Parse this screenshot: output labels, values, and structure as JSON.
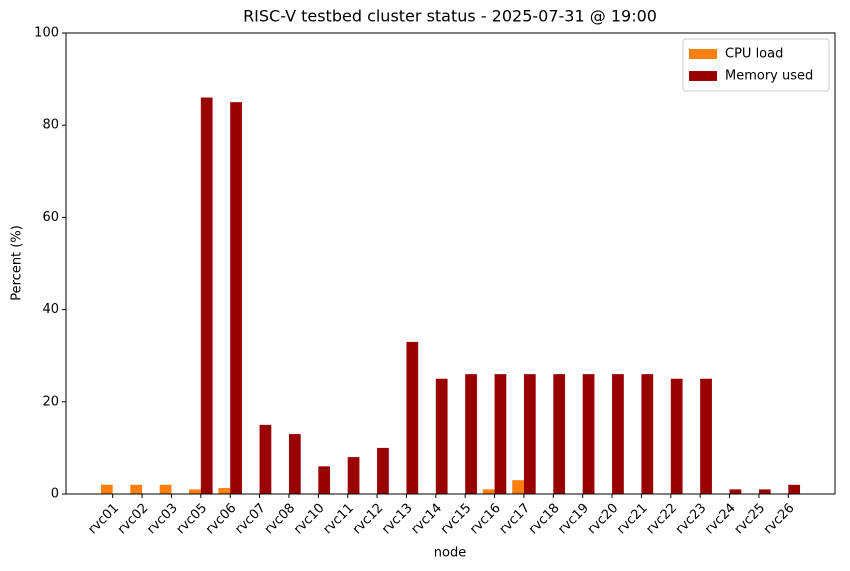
{
  "chart_data": {
    "type": "bar",
    "title": "RISC-V testbed cluster status - 2025-07-31 @ 19:00",
    "x_label": "node",
    "y_label": "Percent (%)",
    "categories": [
      "rvc01",
      "rvc02",
      "rvc03",
      "rvc05",
      "rvc06",
      "rvc07",
      "rvc08",
      "rvc10",
      "rvc11",
      "rvc12",
      "rvc13",
      "rvc14",
      "rvc15",
      "rvc16",
      "rvc17",
      "rvc18",
      "rvc19",
      "rvc20",
      "rvc21",
      "rvc22",
      "rvc23",
      "rvc24",
      "rvc25",
      "rvc26"
    ],
    "series": [
      {
        "name": "CPU load",
        "color": "#ff7f0e",
        "values": [
          2,
          2,
          2,
          1,
          1.3,
          0,
          0,
          0,
          0,
          0,
          0,
          0,
          0,
          1,
          3,
          0,
          0,
          0,
          0,
          0,
          0,
          0,
          0,
          0
        ]
      },
      {
        "name": "Memory used",
        "color": "#990000",
        "values": [
          0,
          0,
          0,
          86,
          85,
          15,
          13,
          6,
          8,
          10,
          33,
          25,
          26,
          26,
          26,
          26,
          26,
          26,
          26,
          25,
          25,
          1,
          1,
          2
        ]
      }
    ],
    "ylim": [
      0,
      100
    ],
    "yticks": [
      0,
      20,
      40,
      60,
      80,
      100
    ],
    "legend": "upper right"
  }
}
